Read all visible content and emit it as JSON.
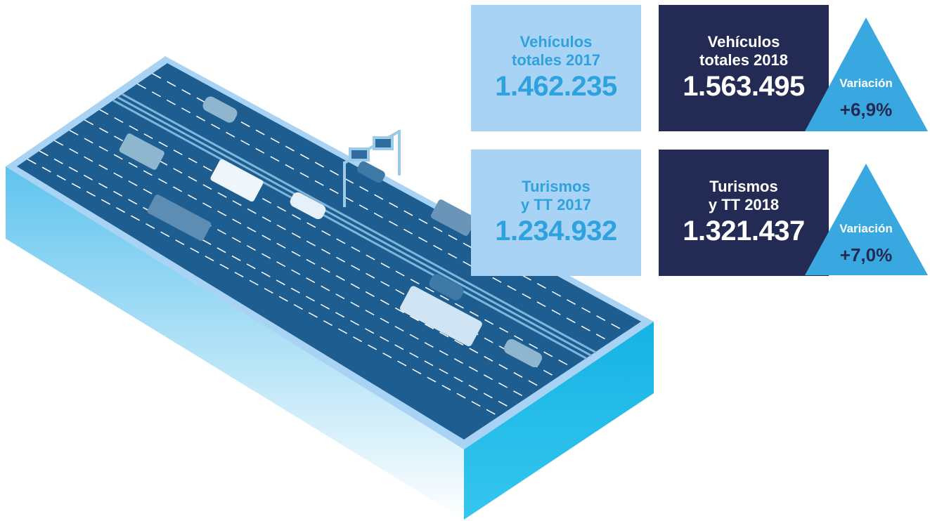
{
  "cards": [
    {
      "lines": [
        "Vehículos",
        "totales 2017"
      ],
      "value": "1.462.235"
    },
    {
      "lines": [
        "Vehículos",
        "totales 2018"
      ],
      "value": "1.563.495",
      "variation": {
        "label": "Variación",
        "value": "+6,9%"
      }
    },
    {
      "lines": [
        "Turismos",
        "y TT 2017"
      ],
      "value": "1.234.932"
    },
    {
      "lines": [
        "Turismos",
        "y TT 2018"
      ],
      "value": "1.321.437",
      "variation": {
        "label": "Variación",
        "value": "+7,0%"
      }
    }
  ]
}
